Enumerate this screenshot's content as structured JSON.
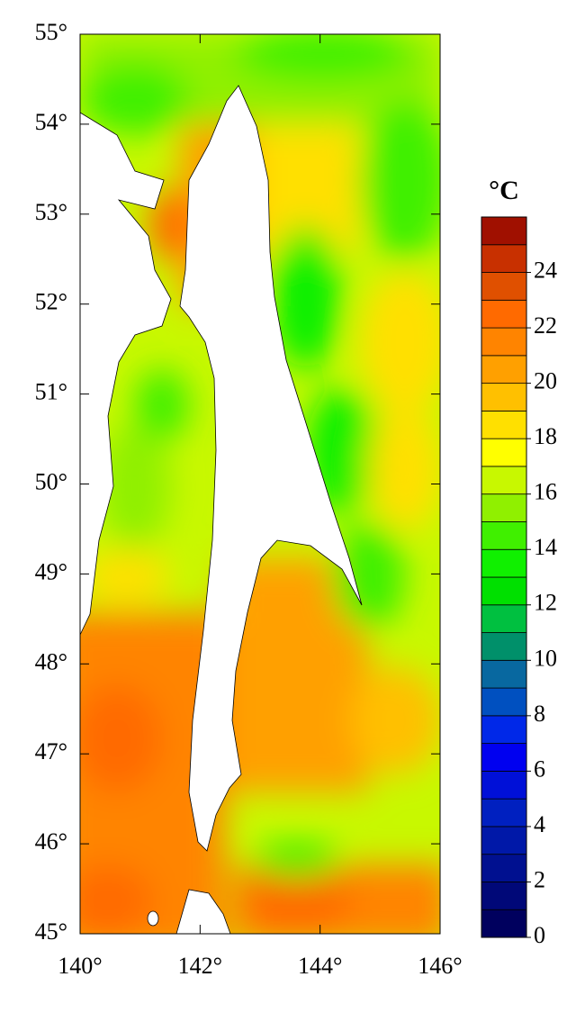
{
  "map": {
    "xlim": [
      140,
      146
    ],
    "ylim": [
      45,
      55
    ],
    "xticks": [
      {
        "value": 140,
        "label": "140°"
      },
      {
        "value": 142,
        "label": "142°"
      },
      {
        "value": 144,
        "label": "144°"
      },
      {
        "value": 146,
        "label": "146°"
      }
    ],
    "yticks": [
      {
        "value": 45,
        "label": "45°"
      },
      {
        "value": 46,
        "label": "46°"
      },
      {
        "value": 47,
        "label": "47°"
      },
      {
        "value": 48,
        "label": "48°"
      },
      {
        "value": 49,
        "label": "49°"
      },
      {
        "value": 50,
        "label": "50°"
      },
      {
        "value": 51,
        "label": "51°"
      },
      {
        "value": 52,
        "label": "52°"
      },
      {
        "value": 53,
        "label": "53°"
      },
      {
        "value": 54,
        "label": "54°"
      },
      {
        "value": 55,
        "label": "55°"
      }
    ]
  },
  "colorbar": {
    "label": "°C",
    "lim": [
      0,
      26
    ],
    "ticks": [
      0,
      2,
      4,
      6,
      8,
      10,
      12,
      14,
      16,
      18,
      20,
      22,
      24
    ],
    "colors": [
      "#00005e",
      "#000878",
      "#001090",
      "#0018a8",
      "#0020c0",
      "#0010d8",
      "#0000f0",
      "#0028e8",
      "#0050c0",
      "#0868a0",
      "#00906a",
      "#00c040",
      "#00e000",
      "#10f000",
      "#40f000",
      "#90f000",
      "#c8f800",
      "#ffff00",
      "#ffe000",
      "#ffc000",
      "#ffa000",
      "#ff8400",
      "#ff6a00",
      "#e05000",
      "#c83000",
      "#a01000"
    ]
  }
}
